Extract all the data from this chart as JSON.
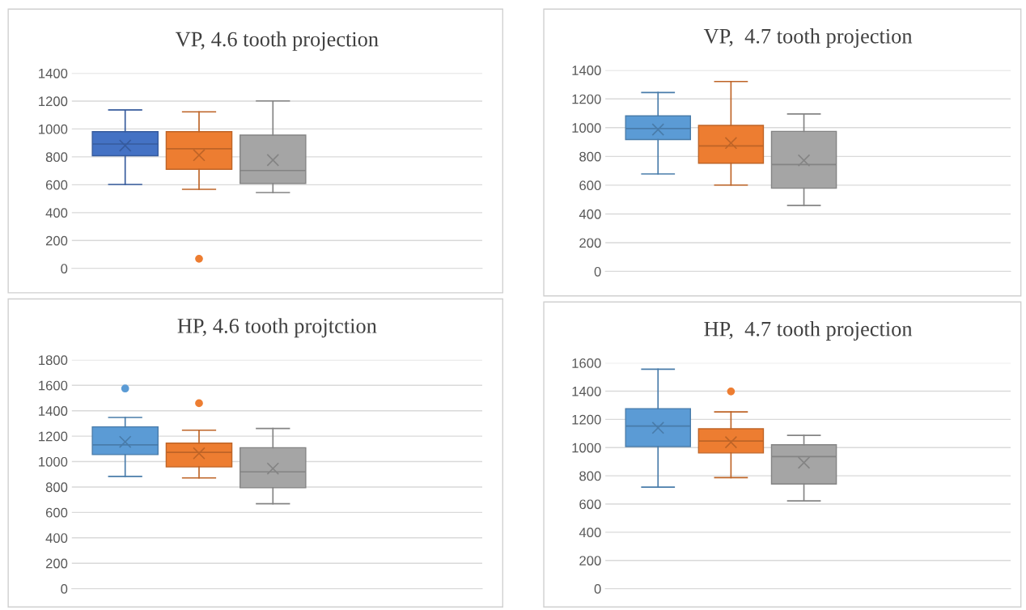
{
  "chart_data": [
    {
      "type": "box",
      "title": "VP, 4.6 tooth projection",
      "categories": [
        null
      ],
      "ylim": [
        0,
        1400
      ],
      "yticks": [
        0,
        200,
        400,
        600,
        800,
        1000,
        1200,
        1400
      ],
      "grid": "y",
      "legend": false,
      "series": [
        {
          "color": "#4472c4",
          "boxes": [
            {
              "low": 602,
              "q1": 808,
              "median": 892,
              "q3": 981,
              "high": 1137,
              "mean": 881
            }
          ]
        },
        {
          "color": "#ed7d31",
          "boxes": [
            {
              "low": 567,
              "q1": 711,
              "median": 858,
              "q3": 981,
              "high": 1123,
              "mean": 812,
              "outliers": [
                69
              ]
            }
          ]
        },
        {
          "color": "#a5a5a5",
          "boxes": [
            {
              "low": 544,
              "q1": 609,
              "median": 702,
              "q3": 956,
              "high": 1201,
              "mean": 777
            }
          ]
        }
      ]
    },
    {
      "type": "box",
      "title": "VP,  4.7 tooth projection",
      "categories": [
        null
      ],
      "ylim": [
        0,
        1400
      ],
      "yticks": [
        0,
        200,
        400,
        600,
        800,
        1000,
        1200,
        1400
      ],
      "grid": "y",
      "legend": false,
      "series": [
        {
          "color": "#5b9bd5",
          "boxes": [
            {
              "low": 678,
              "q1": 917,
              "median": 994,
              "q3": 1082,
              "high": 1244,
              "mean": 987
            }
          ]
        },
        {
          "color": "#ed7d31",
          "boxes": [
            {
              "low": 601,
              "q1": 753,
              "median": 873,
              "q3": 1016,
              "high": 1321,
              "mean": 893
            }
          ]
        },
        {
          "color": "#a5a5a5",
          "boxes": [
            {
              "low": 459,
              "q1": 579,
              "median": 744,
              "q3": 974,
              "high": 1095,
              "mean": 772
            }
          ]
        }
      ]
    },
    {
      "type": "box",
      "title": "HP, 4.6 tooth projtction",
      "categories": [
        null
      ],
      "ylim": [
        0,
        1800
      ],
      "yticks": [
        0,
        200,
        400,
        600,
        800,
        1000,
        1200,
        1400,
        1600,
        1800
      ],
      "grid": "y",
      "legend": false,
      "series": [
        {
          "color": "#5b9bd5",
          "boxes": [
            {
              "low": 883,
              "q1": 1055,
              "median": 1132,
              "q3": 1273,
              "high": 1347,
              "mean": 1155,
              "outliers": [
                1575
              ]
            }
          ]
        },
        {
          "color": "#ed7d31",
          "boxes": [
            {
              "low": 871,
              "q1": 958,
              "median": 1073,
              "q3": 1145,
              "high": 1247,
              "mean": 1065,
              "outliers": [
                1459
              ]
            }
          ]
        },
        {
          "color": "#a5a5a5",
          "boxes": [
            {
              "low": 668,
              "q1": 794,
              "median": 919,
              "q3": 1109,
              "high": 1260,
              "mean": 945
            }
          ]
        }
      ]
    },
    {
      "type": "box",
      "title": "HP,  4.7 tooth projection",
      "categories": [
        null
      ],
      "ylim": [
        0,
        1600
      ],
      "yticks": [
        0,
        200,
        400,
        600,
        800,
        1000,
        1200,
        1400,
        1600
      ],
      "grid": "y",
      "legend": false,
      "series": [
        {
          "color": "#5b9bd5",
          "boxes": [
            {
              "low": 720,
              "q1": 1007,
              "median": 1153,
              "q3": 1276,
              "high": 1556,
              "mean": 1140
            }
          ]
        },
        {
          "color": "#ed7d31",
          "boxes": [
            {
              "low": 787,
              "q1": 962,
              "median": 1047,
              "q3": 1133,
              "high": 1253,
              "mean": 1038,
              "outliers": [
                1398
              ]
            }
          ]
        },
        {
          "color": "#a5a5a5",
          "boxes": [
            {
              "low": 622,
              "q1": 742,
              "median": 936,
              "q3": 1020,
              "high": 1087,
              "mean": 893
            }
          ]
        }
      ]
    }
  ]
}
